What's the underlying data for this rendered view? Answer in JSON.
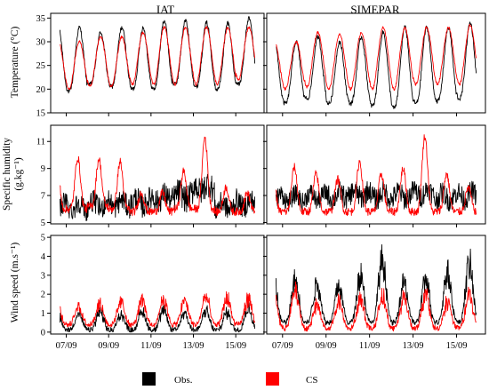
{
  "chart_data": {
    "type": "line",
    "columns": [
      "IAT",
      "SIMEPAR"
    ],
    "x_ticks": [
      "07/09",
      "09/09",
      "11/09",
      "13/09",
      "15/09"
    ],
    "x_tick_days": [
      7,
      9,
      11,
      13,
      15
    ],
    "x_range_days": [
      6.6,
      16.0
    ],
    "rows": [
      {
        "ylabel": "Temperature (°C)",
        "ylim": [
          15,
          36
        ],
        "yticks": [
          "15",
          "20",
          "25",
          "30",
          "35"
        ],
        "ytick_values": [
          15,
          20,
          25,
          30,
          35
        ]
      },
      {
        "ylabel_line1": "Specific humidity",
        "ylabel_line2": "(g.kg⁻¹)",
        "ylim": [
          4.9,
          12.2
        ],
        "yticks": [
          "5",
          "7",
          "9",
          "11"
        ],
        "ytick_values": [
          5,
          7,
          9,
          11
        ]
      },
      {
        "ylabel": "Wind speed (m.s⁻¹)",
        "ylim": [
          -0.1,
          5.1
        ],
        "yticks": [
          "0",
          "1",
          "2",
          "3",
          "4",
          "5"
        ],
        "ytick_values": [
          0,
          1,
          2,
          3,
          4,
          5
        ]
      }
    ],
    "legend": [
      {
        "label": "Obs.",
        "color": "#000000"
      },
      {
        "label": "CS",
        "color": "#ff0000"
      }
    ],
    "series_models": {
      "IAT": {
        "temperature": {
          "obs": {
            "min": [
              19.5,
              21,
              20.5,
              20,
              20,
              21,
              20.5,
              20,
              21,
              21
            ],
            "max": [
              33,
              32,
              33,
              33,
              34.5,
              34.5,
              34,
              34,
              35,
              34
            ]
          },
          "cs": {
            "min": [
              20,
              20.5,
              20.5,
              21,
              21,
              21,
              21,
              21,
              22,
              22
            ],
            "max": [
              30,
              31,
              31,
              32,
              33,
              33,
              33,
              33,
              33,
              34
            ]
          }
        },
        "humidity": {
          "obs": {
            "base": [
              6.2,
              6.3,
              6.4,
              6.5,
              6.8,
              7.0,
              7.6,
              6.2,
              6.4,
              6.8
            ],
            "amp": [
              0.8,
              0.8,
              0.8,
              0.9,
              0.9,
              1.0,
              1.0,
              0.8,
              0.8,
              0.8
            ]
          },
          "cs": {
            "low": [
              6.0,
              6.2,
              6.0,
              5.8,
              5.8,
              6.0,
              6.0,
              5.8,
              5.8,
              5.8
            ],
            "peak": [
              9.8,
              9.7,
              9.5,
              7.2,
              7.2,
              8.8,
              11.3,
              7.6,
              7.2,
              7.4
            ]
          }
        },
        "wind": {
          "obs": {
            "peak": [
              1.2,
              1.3,
              1.2,
              1.3,
              1.4,
              1.3,
              1.4,
              1.3,
              1.6,
              1.0
            ],
            "low": 0.1
          },
          "cs": {
            "peak": [
              1.6,
              1.8,
              1.9,
              2.0,
              2.1,
              2.0,
              2.3,
              2.2,
              2.1,
              1.6
            ],
            "low": 0.4
          }
        }
      },
      "SIMEPAR": {
        "temperature": {
          "obs": {
            "min": [
              17,
              18,
              17,
              17,
              16.5,
              16,
              17,
              17.5,
              18,
              18
            ],
            "max": [
              30,
              31,
              30,
              31,
              32,
              33,
              33,
              33,
              34,
              34
            ]
          },
          "cs": {
            "min": [
              20,
              20.5,
              20,
              20,
              20,
              20,
              21,
              21,
              21,
              21
            ],
            "max": [
              30,
              32,
              31.5,
              32,
              33,
              33,
              33,
              33,
              33.5,
              34
            ]
          }
        },
        "humidity": {
          "obs": {
            "base": [
              6.8,
              6.9,
              7.0,
              7.1,
              7.0,
              7.0,
              7.2,
              6.9,
              7.0,
              7.4
            ],
            "amp": [
              0.7,
              0.7,
              0.8,
              0.8,
              0.8,
              0.8,
              0.8,
              0.8,
              0.8,
              0.8
            ]
          },
          "cs": {
            "low": [
              5.8,
              5.8,
              5.8,
              5.8,
              5.8,
              5.8,
              5.8,
              5.8,
              5.8,
              5.8
            ],
            "peak": [
              9.1,
              8.6,
              8.2,
              9.5,
              8.6,
              9.0,
              11.4,
              8.6,
              7.6,
              7.2
            ]
          }
        },
        "wind": {
          "obs": {
            "peak": [
              3.3,
              3.1,
              3.0,
              3.8,
              4.8,
              3.2,
              3.4,
              3.9,
              4.4,
              2.8
            ],
            "low": 0.5
          },
          "cs": {
            "peak": [
              2.7,
              1.7,
              2.0,
              2.1,
              2.4,
              2.3,
              2.4,
              2.0,
              2.4,
              2.0
            ],
            "low": 0.2
          }
        }
      }
    }
  }
}
